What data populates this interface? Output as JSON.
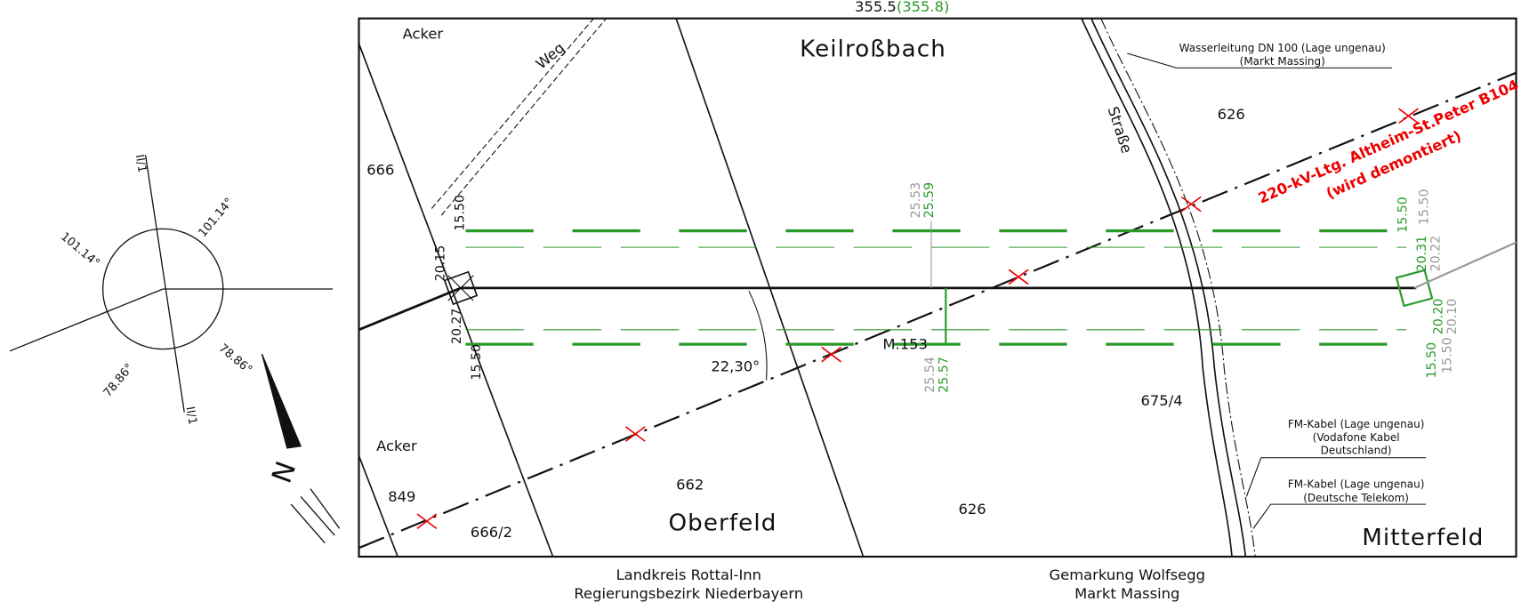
{
  "top_dimension": {
    "value": "355.5",
    "alt": "(355.8)"
  },
  "fields": {
    "acker_top": "Acker",
    "acker_bottom": "Acker",
    "keilrossbach": "Keilroßbach",
    "oberfeld": "Oberfeld",
    "mitterfeld": "Mitterfeld",
    "weg": "Weg",
    "strasse": "Straße"
  },
  "parcels": {
    "p666": "666",
    "p662": "662",
    "p626_top": "626",
    "p626_bottom": "626",
    "p666_2": "666/2",
    "p849": "849",
    "p675_4": "675/4"
  },
  "notes": {
    "water": [
      "Wasserleitung DN 100 (Lage ungenau)",
      "(Markt Massing)"
    ],
    "powerline": [
      "220-kV-Ltg. Altheim-St.Peter B104",
      "(wird demontiert)"
    ],
    "cable_vodafone": [
      "FM-Kabel (Lage ungenau)",
      "(Vodafone Kabel",
      "Deutschland)"
    ],
    "cable_telekom": [
      "FM-Kabel (Lage ungenau)",
      "(Deutsche Telekom)"
    ]
  },
  "dimensions": {
    "left": [
      "15.50",
      "20.15",
      "20.27",
      "15.50"
    ],
    "middle_old": [
      "25.53",
      "25.54"
    ],
    "middle_new": [
      "25.59",
      "25.57"
    ],
    "right_new": [
      "15.50",
      "20.31",
      "20.20",
      "15.50"
    ],
    "right_old": [
      "15.50",
      "20.22",
      "20.10",
      "15.50"
    ],
    "angle": "22,30°",
    "marker": "M.153"
  },
  "compass": {
    "angles": [
      "101.14°",
      "101.14°",
      "78.86°",
      "78.86°"
    ],
    "axis": [
      "II/1",
      "II/1"
    ],
    "north": "N"
  },
  "footer": {
    "left": [
      "Landkreis Rottal-Inn",
      "Regierungsbezirk Niederbayern"
    ],
    "right": [
      "Gemarkung Wolfsegg",
      "Markt Massing"
    ]
  }
}
